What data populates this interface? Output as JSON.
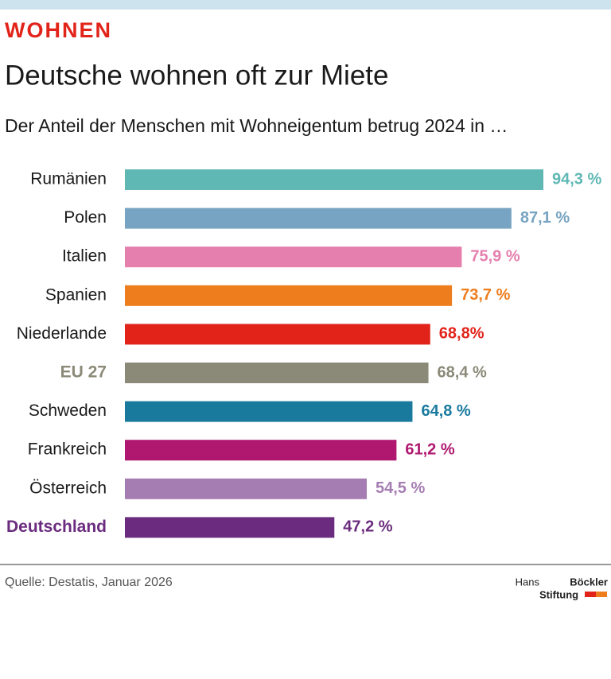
{
  "chart_data": {
    "type": "hbar",
    "kicker": "WOHNEN",
    "title": "Deutsche wohnen oft zur Miete",
    "subtitle": "Der Anteil der Menschen mit Wohneigentum betrug 2024 in …",
    "categories": [
      "Rumänien",
      "Polen",
      "Italien",
      "Spanien",
      "Niederlande",
      "EU 27",
      "Schweden",
      "Frankreich",
      "Österreich",
      "Deutschland"
    ],
    "values": [
      94.3,
      87.1,
      75.9,
      73.7,
      68.8,
      68.4,
      64.8,
      61.2,
      54.5,
      47.2
    ],
    "value_labels": [
      "94,3 %",
      "87,1 %",
      "75,9 %",
      "73,7 %",
      "68,8%",
      "68,4 %",
      "64,8 %",
      "61,2 %",
      "54,5 %",
      "47,2 %"
    ],
    "colors": [
      "#5fb8b4",
      "#77a4c2",
      "#e57fae",
      "#ee7d1e",
      "#e2231a",
      "#8b8a78",
      "#1a7a9e",
      "#b0186f",
      "#a67db2",
      "#6b2c7f"
    ],
    "emphasis": [
      false,
      false,
      false,
      false,
      false,
      true,
      false,
      false,
      false,
      true
    ],
    "source": "Quelle: Destatis, Januar 2026"
  },
  "logo": {
    "line1a": "Hans",
    "line1b": "Böckler",
    "line2": "Stiftung"
  }
}
